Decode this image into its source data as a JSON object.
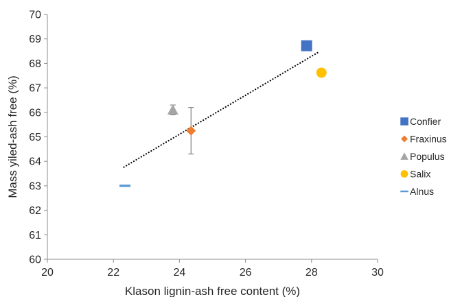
{
  "chart_data": {
    "type": "scatter",
    "title": "",
    "xlabel": "Klason lignin-ash free content (%)",
    "ylabel": "Mass yiled-ash free (%)",
    "xlim": [
      20,
      30
    ],
    "ylim": [
      60,
      70
    ],
    "x_ticks": [
      "20",
      "22",
      "24",
      "26",
      "28",
      "30"
    ],
    "y_ticks": [
      "60",
      "61",
      "62",
      "63",
      "64",
      "65",
      "66",
      "67",
      "68",
      "69",
      "70"
    ],
    "grid": false,
    "legend_position": "right",
    "series": [
      {
        "name": "Confier",
        "marker": "square",
        "color": "#4472C4",
        "x": [
          27.85
        ],
        "y": [
          68.72
        ],
        "error": null
      },
      {
        "name": "Fraxinus",
        "marker": "diamond",
        "color": "#ED7D31",
        "x": [
          24.35
        ],
        "y": [
          65.25
        ],
        "error": [
          0.95
        ]
      },
      {
        "name": "Populus",
        "marker": "triangle",
        "color": "#A5A5A5",
        "x": [
          23.8
        ],
        "y": [
          66.1
        ],
        "error": [
          0.2
        ]
      },
      {
        "name": "Salix",
        "marker": "circle",
        "color": "#FFC000",
        "x": [
          28.3
        ],
        "y": [
          67.62
        ],
        "error": null
      },
      {
        "name": "Alnus",
        "marker": "dash",
        "color": "#5B9BD5",
        "x": [
          22.35
        ],
        "y": [
          63.0
        ],
        "error": null
      }
    ],
    "trendline": {
      "style": "dotted",
      "color": "#000000",
      "x": [
        22.3,
        28.2
      ],
      "y": [
        63.75,
        68.45
      ]
    }
  }
}
